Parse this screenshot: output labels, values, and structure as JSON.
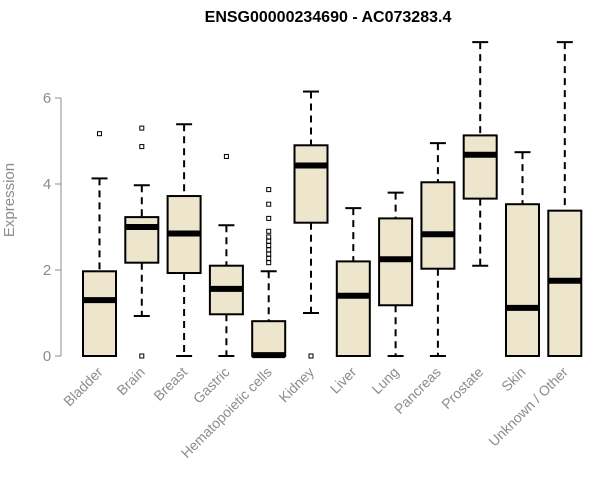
{
  "chart_data": {
    "type": "box",
    "title": "ENSG00000234690 - AC073283.4",
    "xlabel": "",
    "ylabel": "Expression",
    "ylim": [
      0,
      7.5
    ],
    "yticks": [
      0,
      2,
      4,
      6
    ],
    "box_fill": "#ede6cc",
    "categories": [
      "Bladder",
      "Brain",
      "Breast",
      "Gastric",
      "Hematopoietic cells",
      "Kidney",
      "Liver",
      "Lung",
      "Pancreas",
      "Prostate",
      "Skin",
      "Unknown / Other"
    ],
    "boxes": [
      {
        "min": 0,
        "q1": 0,
        "median": 1.3,
        "q3": 1.97,
        "max": 4.13,
        "outliers": [
          5.17
        ]
      },
      {
        "min": 0.93,
        "q1": 2.17,
        "median": 3.0,
        "q3": 3.23,
        "max": 3.97,
        "outliers": [
          0,
          4.87,
          5.3
        ]
      },
      {
        "min": 0,
        "q1": 1.93,
        "median": 2.85,
        "q3": 3.72,
        "max": 5.39,
        "outliers": []
      },
      {
        "min": 0,
        "q1": 0.97,
        "median": 1.56,
        "q3": 2.1,
        "max": 3.04,
        "outliers": [
          4.64
        ]
      },
      {
        "min": 0,
        "q1": 0,
        "median": 0.02,
        "q3": 0.81,
        "max": 1.97,
        "outliers": [
          2.17,
          2.27,
          2.37,
          2.47,
          2.57,
          2.67,
          2.77,
          2.9,
          3.2,
          3.53,
          3.87
        ]
      },
      {
        "min": 1.0,
        "q1": 3.1,
        "median": 4.43,
        "q3": 4.9,
        "max": 6.15,
        "outliers": [
          0
        ]
      },
      {
        "min": 0,
        "q1": 0,
        "median": 1.4,
        "q3": 2.2,
        "max": 3.44,
        "outliers": []
      },
      {
        "min": 0,
        "q1": 1.18,
        "median": 2.25,
        "q3": 3.2,
        "max": 3.8,
        "outliers": []
      },
      {
        "min": 0,
        "q1": 2.03,
        "median": 2.83,
        "q3": 4.04,
        "max": 4.95,
        "outliers": []
      },
      {
        "min": 2.1,
        "q1": 3.66,
        "median": 4.68,
        "q3": 5.13,
        "max": 7.3,
        "outliers": []
      },
      {
        "min": 0,
        "q1": 0,
        "median": 1.12,
        "q3": 3.53,
        "max": 4.74,
        "outliers": []
      },
      {
        "min": 0,
        "q1": 0,
        "median": 1.75,
        "q3": 3.38,
        "max": 7.3,
        "outliers": []
      }
    ]
  }
}
